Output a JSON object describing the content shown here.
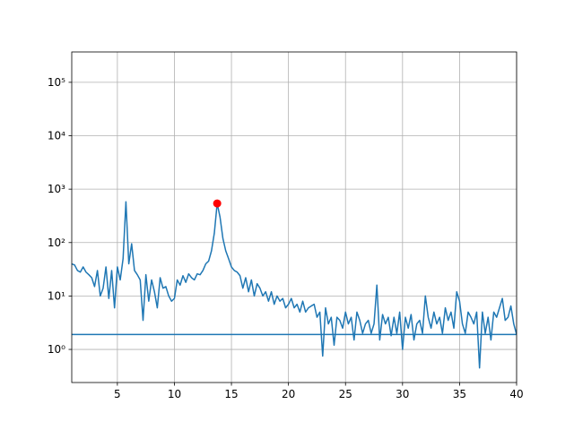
{
  "chart_data": {
    "type": "line",
    "log_y": true,
    "grid": true,
    "xlim": [
      1,
      40
    ],
    "ylim": [
      0.24,
      370000
    ],
    "xticks": [
      5,
      10,
      15,
      20,
      25,
      30,
      35,
      40
    ],
    "yticks": [
      {
        "value": 1,
        "label": "10⁰"
      },
      {
        "value": 10,
        "label": "10¹"
      },
      {
        "value": 100,
        "label": "10²"
      },
      {
        "value": 1000,
        "label": "10³"
      },
      {
        "value": 10000,
        "label": "10⁴"
      },
      {
        "value": 100000,
        "label": "10⁵"
      }
    ],
    "series": [
      {
        "type": "line",
        "color": "#1f77b4",
        "x": [
          1,
          1.25,
          1.5,
          1.75,
          2,
          2.25,
          2.5,
          2.75,
          3,
          3.25,
          3.5,
          3.75,
          4,
          4.25,
          4.5,
          4.75,
          5,
          5.25,
          5.5,
          5.75,
          6,
          6.25,
          6.5,
          6.75,
          7,
          7.25,
          7.5,
          7.75,
          8,
          8.25,
          8.5,
          8.75,
          9,
          9.25,
          9.5,
          9.75,
          10,
          10.25,
          10.5,
          10.75,
          11,
          11.25,
          11.5,
          11.75,
          12,
          12.25,
          12.5,
          12.75,
          13,
          13.25,
          13.5,
          13.75,
          14,
          14.25,
          14.5,
          14.75,
          15,
          15.25,
          15.5,
          15.75,
          16,
          16.25,
          16.5,
          16.75,
          17,
          17.25,
          17.5,
          17.75,
          18,
          18.25,
          18.5,
          18.75,
          19,
          19.25,
          19.5,
          19.75,
          20,
          20.25,
          20.5,
          20.75,
          21,
          21.25,
          21.5,
          21.75,
          22,
          22.25,
          22.5,
          22.75,
          23,
          23.25,
          23.5,
          23.75,
          24,
          24.25,
          24.5,
          24.75,
          25,
          25.25,
          25.5,
          25.75,
          26,
          26.25,
          26.5,
          26.75,
          27,
          27.25,
          27.5,
          27.75,
          28,
          28.25,
          28.5,
          28.75,
          29,
          29.25,
          29.5,
          29.75,
          30,
          30.25,
          30.5,
          30.75,
          31,
          31.25,
          31.5,
          31.75,
          32,
          32.25,
          32.5,
          32.75,
          33,
          33.25,
          33.5,
          33.75,
          34,
          34.25,
          34.5,
          34.75,
          35,
          35.25,
          35.5,
          35.75,
          36,
          36.25,
          36.5,
          36.75,
          37,
          37.25,
          37.5,
          37.75,
          38,
          38.25,
          38.5,
          38.75,
          39,
          39.25,
          39.5,
          39.75,
          40
        ],
        "values": [
          40,
          38,
          30,
          28,
          35,
          28,
          25,
          22,
          15,
          30,
          10,
          14,
          35,
          9,
          30,
          6,
          35,
          20,
          50,
          580,
          40,
          95,
          30,
          25,
          20,
          3.5,
          25,
          8,
          20,
          12,
          6,
          22,
          14,
          15,
          10,
          8,
          9,
          20,
          16,
          24,
          18,
          26,
          22,
          20,
          26,
          25,
          30,
          40,
          45,
          70,
          150,
          540,
          300,
          120,
          70,
          50,
          35,
          30,
          28,
          24,
          14,
          22,
          12,
          20,
          10,
          17,
          14,
          10,
          12,
          8,
          12,
          7,
          10,
          8,
          9,
          6,
          7,
          9,
          6,
          7,
          5,
          8,
          5,
          6,
          6.5,
          7,
          4,
          5,
          0.75,
          6,
          3,
          4,
          1.2,
          4,
          3.5,
          2.5,
          5,
          3,
          4,
          1.5,
          5,
          3.5,
          2,
          3,
          3.5,
          2,
          3,
          16,
          1.5,
          4.5,
          3,
          4,
          1.8,
          4,
          2,
          5,
          1,
          4,
          2.5,
          4.5,
          1.5,
          3,
          3.5,
          2,
          10,
          4,
          2.5,
          5,
          3,
          4,
          2,
          6,
          3.5,
          5,
          2.5,
          12,
          8,
          3,
          2,
          5,
          4,
          3,
          5,
          0.45,
          5,
          2,
          4,
          1.5,
          5,
          4,
          6,
          9,
          3.5,
          4,
          6.5,
          3,
          1.9
        ]
      },
      {
        "type": "line",
        "color": "#1f77b4",
        "x": [
          1,
          40
        ],
        "values": [
          1.9,
          1.9
        ]
      },
      {
        "type": "scatter",
        "color": "#ff0000",
        "x": [
          13.75
        ],
        "values": [
          540
        ]
      }
    ]
  }
}
